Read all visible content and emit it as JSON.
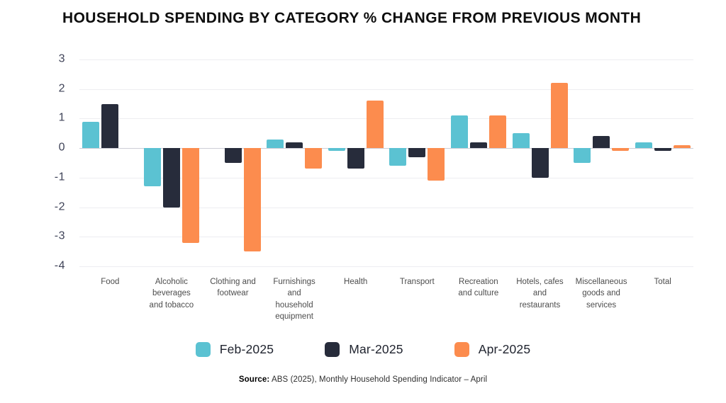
{
  "title": "HOUSEHOLD SPENDING BY CATEGORY % CHANGE FROM PREVIOUS MONTH",
  "source": {
    "label": "Source:",
    "text": " ABS (2025), Monthly Household Spending Indicator – April"
  },
  "colors": {
    "feb": "#5bc2d2",
    "mar": "#272c3b",
    "apr": "#fc8c4e",
    "grid": "#ededf1",
    "zero_line": "#cdcdd6",
    "tick_text": "#3f4358",
    "category_text": "#4d4d4d"
  },
  "chart_data": {
    "type": "bar",
    "title": "HOUSEHOLD SPENDING BY CATEGORY % CHANGE FROM PREVIOUS MONTH",
    "xlabel": "",
    "ylabel": "",
    "ylim": [
      -4,
      3
    ],
    "ytick_step": 1,
    "yticks": [
      3,
      2,
      1,
      0,
      -1,
      -2,
      -3,
      -4
    ],
    "grid": true,
    "legend_position": "bottom",
    "categories": [
      "Food",
      "Alcoholic beverages and tobacco",
      "Clothing and footwear",
      "Furnishings and household equipment",
      "Health",
      "Transport",
      "Recreation and culture",
      "Hotels, cafes and restaurants",
      "Miscellaneous goods and services",
      "Total"
    ],
    "category_lines": [
      [
        "Food"
      ],
      [
        "Alcoholic",
        "beverages",
        "and tobacco"
      ],
      [
        "Clothing and",
        "footwear"
      ],
      [
        "Furnishings",
        "and",
        "household",
        "equipment"
      ],
      [
        "Health"
      ],
      [
        "Transport"
      ],
      [
        "Recreation",
        "and culture"
      ],
      [
        "Hotels, cafes",
        "and",
        "restaurants"
      ],
      [
        "Miscellaneous",
        "goods and",
        "services"
      ],
      [
        "Total"
      ]
    ],
    "series": [
      {
        "name": "Feb-2025",
        "color": "#5bc2d2",
        "values": [
          0.9,
          -1.3,
          0,
          0.3,
          -0.1,
          -0.6,
          1.1,
          0.5,
          -0.5,
          0.2
        ]
      },
      {
        "name": "Mar-2025",
        "color": "#272c3b",
        "values": [
          1.5,
          -2.0,
          -0.5,
          0.2,
          -0.7,
          -0.3,
          0.2,
          -1.0,
          0.4,
          -0.1
        ]
      },
      {
        "name": "Apr-2025",
        "color": "#fc8c4e",
        "values": [
          0,
          -3.2,
          -3.5,
          -0.7,
          1.6,
          -1.1,
          1.1,
          2.2,
          -0.1,
          0.1
        ]
      }
    ]
  }
}
